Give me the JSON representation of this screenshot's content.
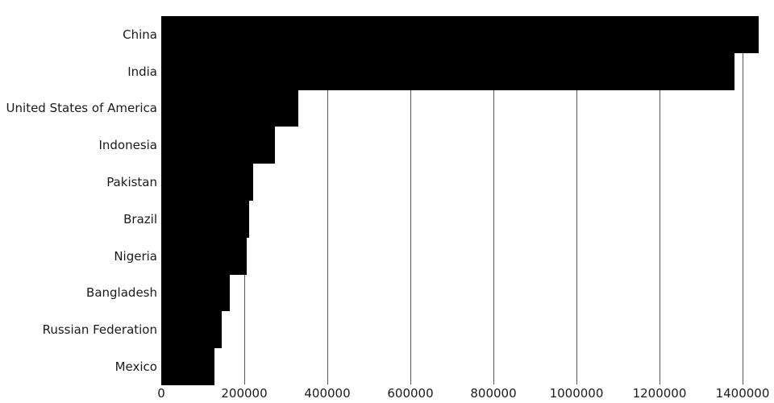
{
  "chart_data": {
    "type": "bar",
    "orientation": "horizontal",
    "title": "",
    "xlabel": "",
    "ylabel": "",
    "categories": [
      "China",
      "India",
      "United States of America",
      "Indonesia",
      "Pakistan",
      "Brazil",
      "Nigeria",
      "Bangladesh",
      "Russian Federation",
      "Mexico"
    ],
    "values": [
      1439324,
      1380004,
      331003,
      273524,
      220892,
      212559,
      206140,
      164689,
      145934,
      128933
    ],
    "x_ticks": [
      0,
      200000,
      400000,
      600000,
      800000,
      1000000,
      1200000,
      1400000
    ],
    "x_tick_labels": [
      "0",
      "200000",
      "400000",
      "600000",
      "800000",
      "1000000",
      "1200000",
      "1400000"
    ],
    "xlim": [
      0,
      1475728
    ],
    "grid": "vertical-only",
    "legend": "none",
    "bar_gap": 0,
    "colors": {
      "bar": "#000000",
      "gridline": "#555555",
      "text": "#1a1a1a",
      "background": "#ffffff"
    }
  }
}
